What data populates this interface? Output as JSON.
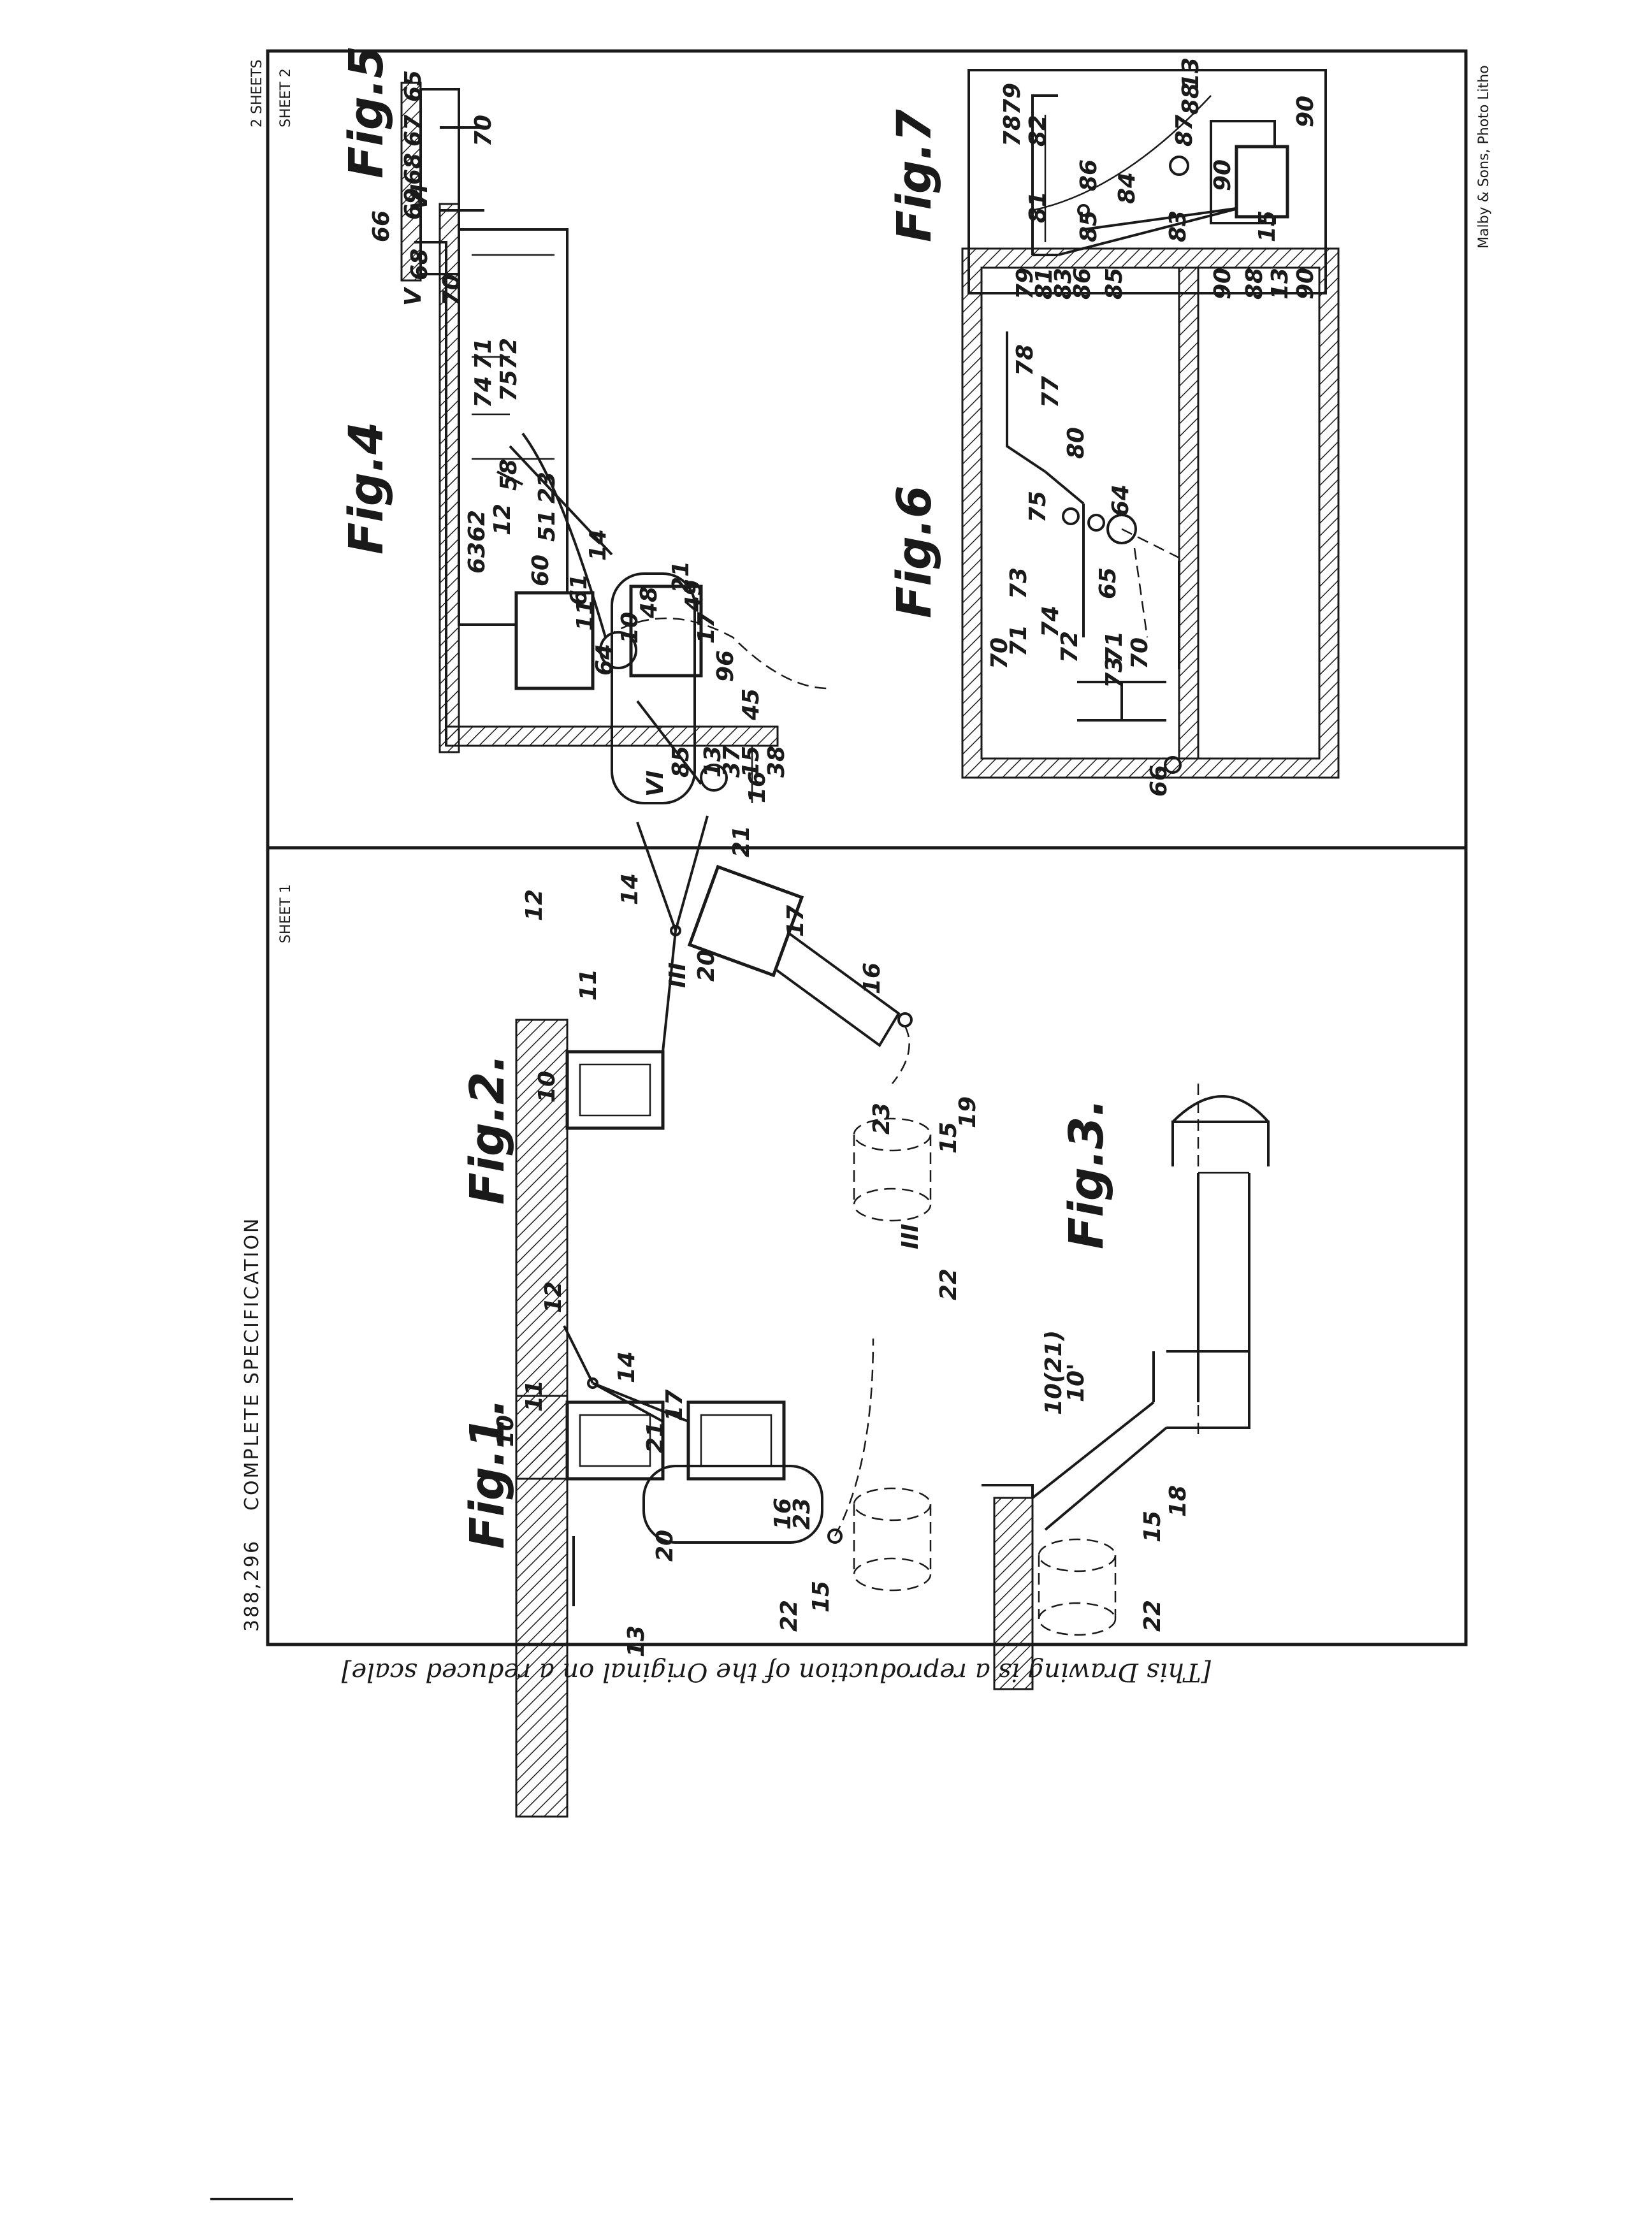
{
  "header": {
    "spec_number": "388,296",
    "spec_title": "COMPLETE SPECIFICATION",
    "sheet_1": "SHEET 1",
    "sheets_total": "2 SHEETS",
    "sheet_2": "SHEET 2"
  },
  "footer": {
    "reproduction_note": "[This Drawing is a reproduction of the Original on a reduced scale]",
    "printer": "Malby & Sons, Photo Litho"
  },
  "figures": {
    "fig1": {
      "title": "Fig.1.",
      "labels": [
        "10",
        "11",
        "12",
        "14",
        "13",
        "20",
        "21",
        "17",
        "16",
        "23",
        "22",
        "15"
      ]
    },
    "fig2": {
      "title": "Fig.2.",
      "labels": [
        "10",
        "11",
        "12",
        "14",
        "III",
        "20",
        "21",
        "17",
        "16",
        "23",
        "III",
        "22",
        "15"
      ]
    },
    "fig3": {
      "title": "Fig.3.",
      "labels": [
        "10(21)",
        "10'",
        "18",
        "15",
        "22",
        "19"
      ]
    },
    "fig4": {
      "title": "Fig.4",
      "labels": [
        "V",
        "68",
        "70",
        "66",
        "VI",
        "71",
        "72",
        "75",
        "74",
        "58",
        "62",
        "63",
        "12",
        "60",
        "51",
        "61",
        "64",
        "10",
        "11",
        "14",
        "23",
        "48",
        "21",
        "49",
        "17",
        "96",
        "45",
        "16",
        "85",
        "13",
        "37",
        "15",
        "38",
        "VI"
      ]
    },
    "fig5": {
      "title": "Fig.5",
      "labels": [
        "65",
        "67",
        "68",
        "69",
        "70"
      ]
    },
    "fig6": {
      "title": "Fig.6",
      "labels": [
        "79",
        "81",
        "83",
        "86",
        "85",
        "78",
        "77",
        "80",
        "64",
        "75",
        "65",
        "73",
        "74",
        "72",
        "71",
        "70",
        "73",
        "71",
        "70",
        "66",
        "90",
        "88",
        "13",
        "90"
      ]
    },
    "fig7": {
      "title": "Fig.7",
      "labels": [
        "79",
        "78",
        "82",
        "81",
        "86",
        "85",
        "87",
        "88",
        "13",
        "84",
        "83",
        "90",
        "15",
        "90"
      ]
    }
  }
}
